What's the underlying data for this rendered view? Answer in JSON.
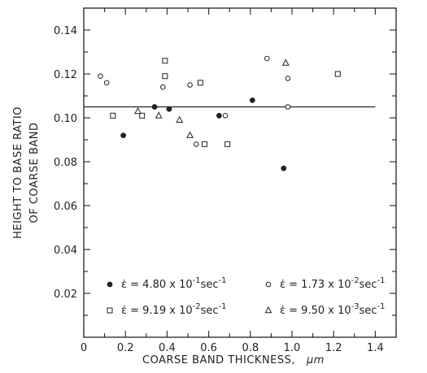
{
  "chart_data": {
    "type": "scatter",
    "xlabel": "COARSE BAND THICKNESS,",
    "xlabel_unit": "μm",
    "ylabel_lines": [
      "HEIGHT TO BASE RATIO",
      "OF COARSE BAND"
    ],
    "xlim": [
      0,
      1.5
    ],
    "ylim": [
      0,
      0.15
    ],
    "x_ticks": [
      0,
      0.2,
      0.4,
      0.6,
      0.8,
      1.0,
      1.2,
      1.4
    ],
    "x_tick_labels": [
      "0",
      "0.2",
      "0.4",
      "0.6",
      "0.8",
      "1.0",
      "1.2",
      "1.4"
    ],
    "y_ticks": [
      0.02,
      0.04,
      0.06,
      0.08,
      0.1,
      0.12,
      0.14
    ],
    "y_tick_labels": [
      "0.02",
      "0.04",
      "0.06",
      "0.08",
      "0.10",
      "0.12",
      "0.14"
    ],
    "reference_line": {
      "y": 0.105
    },
    "grid": false,
    "legend_position": "bottom-inside",
    "series": [
      {
        "marker": "filled-circle",
        "legend_prefix": "ε̇ = 4.80 x 10",
        "legend_exp": "-1",
        "legend_unit": "sec",
        "legend_unit_exp": "-1",
        "points": [
          [
            0.19,
            0.092
          ],
          [
            0.34,
            0.105
          ],
          [
            0.41,
            0.104
          ],
          [
            0.65,
            0.101
          ],
          [
            0.81,
            0.108
          ],
          [
            0.96,
            0.077
          ]
        ]
      },
      {
        "marker": "open-circle",
        "legend_prefix": "ε̇ = 1.73 x 10",
        "legend_exp": "-2",
        "legend_unit": "sec",
        "legend_unit_exp": "-1",
        "points": [
          [
            0.08,
            0.119
          ],
          [
            0.11,
            0.116
          ],
          [
            0.38,
            0.114
          ],
          [
            0.51,
            0.115
          ],
          [
            0.54,
            0.088
          ],
          [
            0.68,
            0.101
          ],
          [
            0.88,
            0.127
          ],
          [
            0.98,
            0.118
          ],
          [
            0.98,
            0.105
          ]
        ]
      },
      {
        "marker": "open-square",
        "legend_prefix": "ε̇ = 9.19 x 10",
        "legend_exp": "-2",
        "legend_unit": "sec",
        "legend_unit_exp": "-1",
        "points": [
          [
            0.14,
            0.101
          ],
          [
            0.28,
            0.101
          ],
          [
            0.39,
            0.126
          ],
          [
            0.39,
            0.119
          ],
          [
            0.56,
            0.116
          ],
          [
            0.58,
            0.088
          ],
          [
            0.69,
            0.088
          ],
          [
            1.22,
            0.12
          ]
        ]
      },
      {
        "marker": "open-triangle",
        "legend_prefix": "ε̇ = 9.50 x 10",
        "legend_exp": "-3",
        "legend_unit": "sec",
        "legend_unit_exp": "-1",
        "points": [
          [
            0.26,
            0.103
          ],
          [
            0.36,
            0.101
          ],
          [
            0.46,
            0.099
          ],
          [
            0.51,
            0.092
          ],
          [
            0.97,
            0.125
          ]
        ]
      }
    ]
  }
}
